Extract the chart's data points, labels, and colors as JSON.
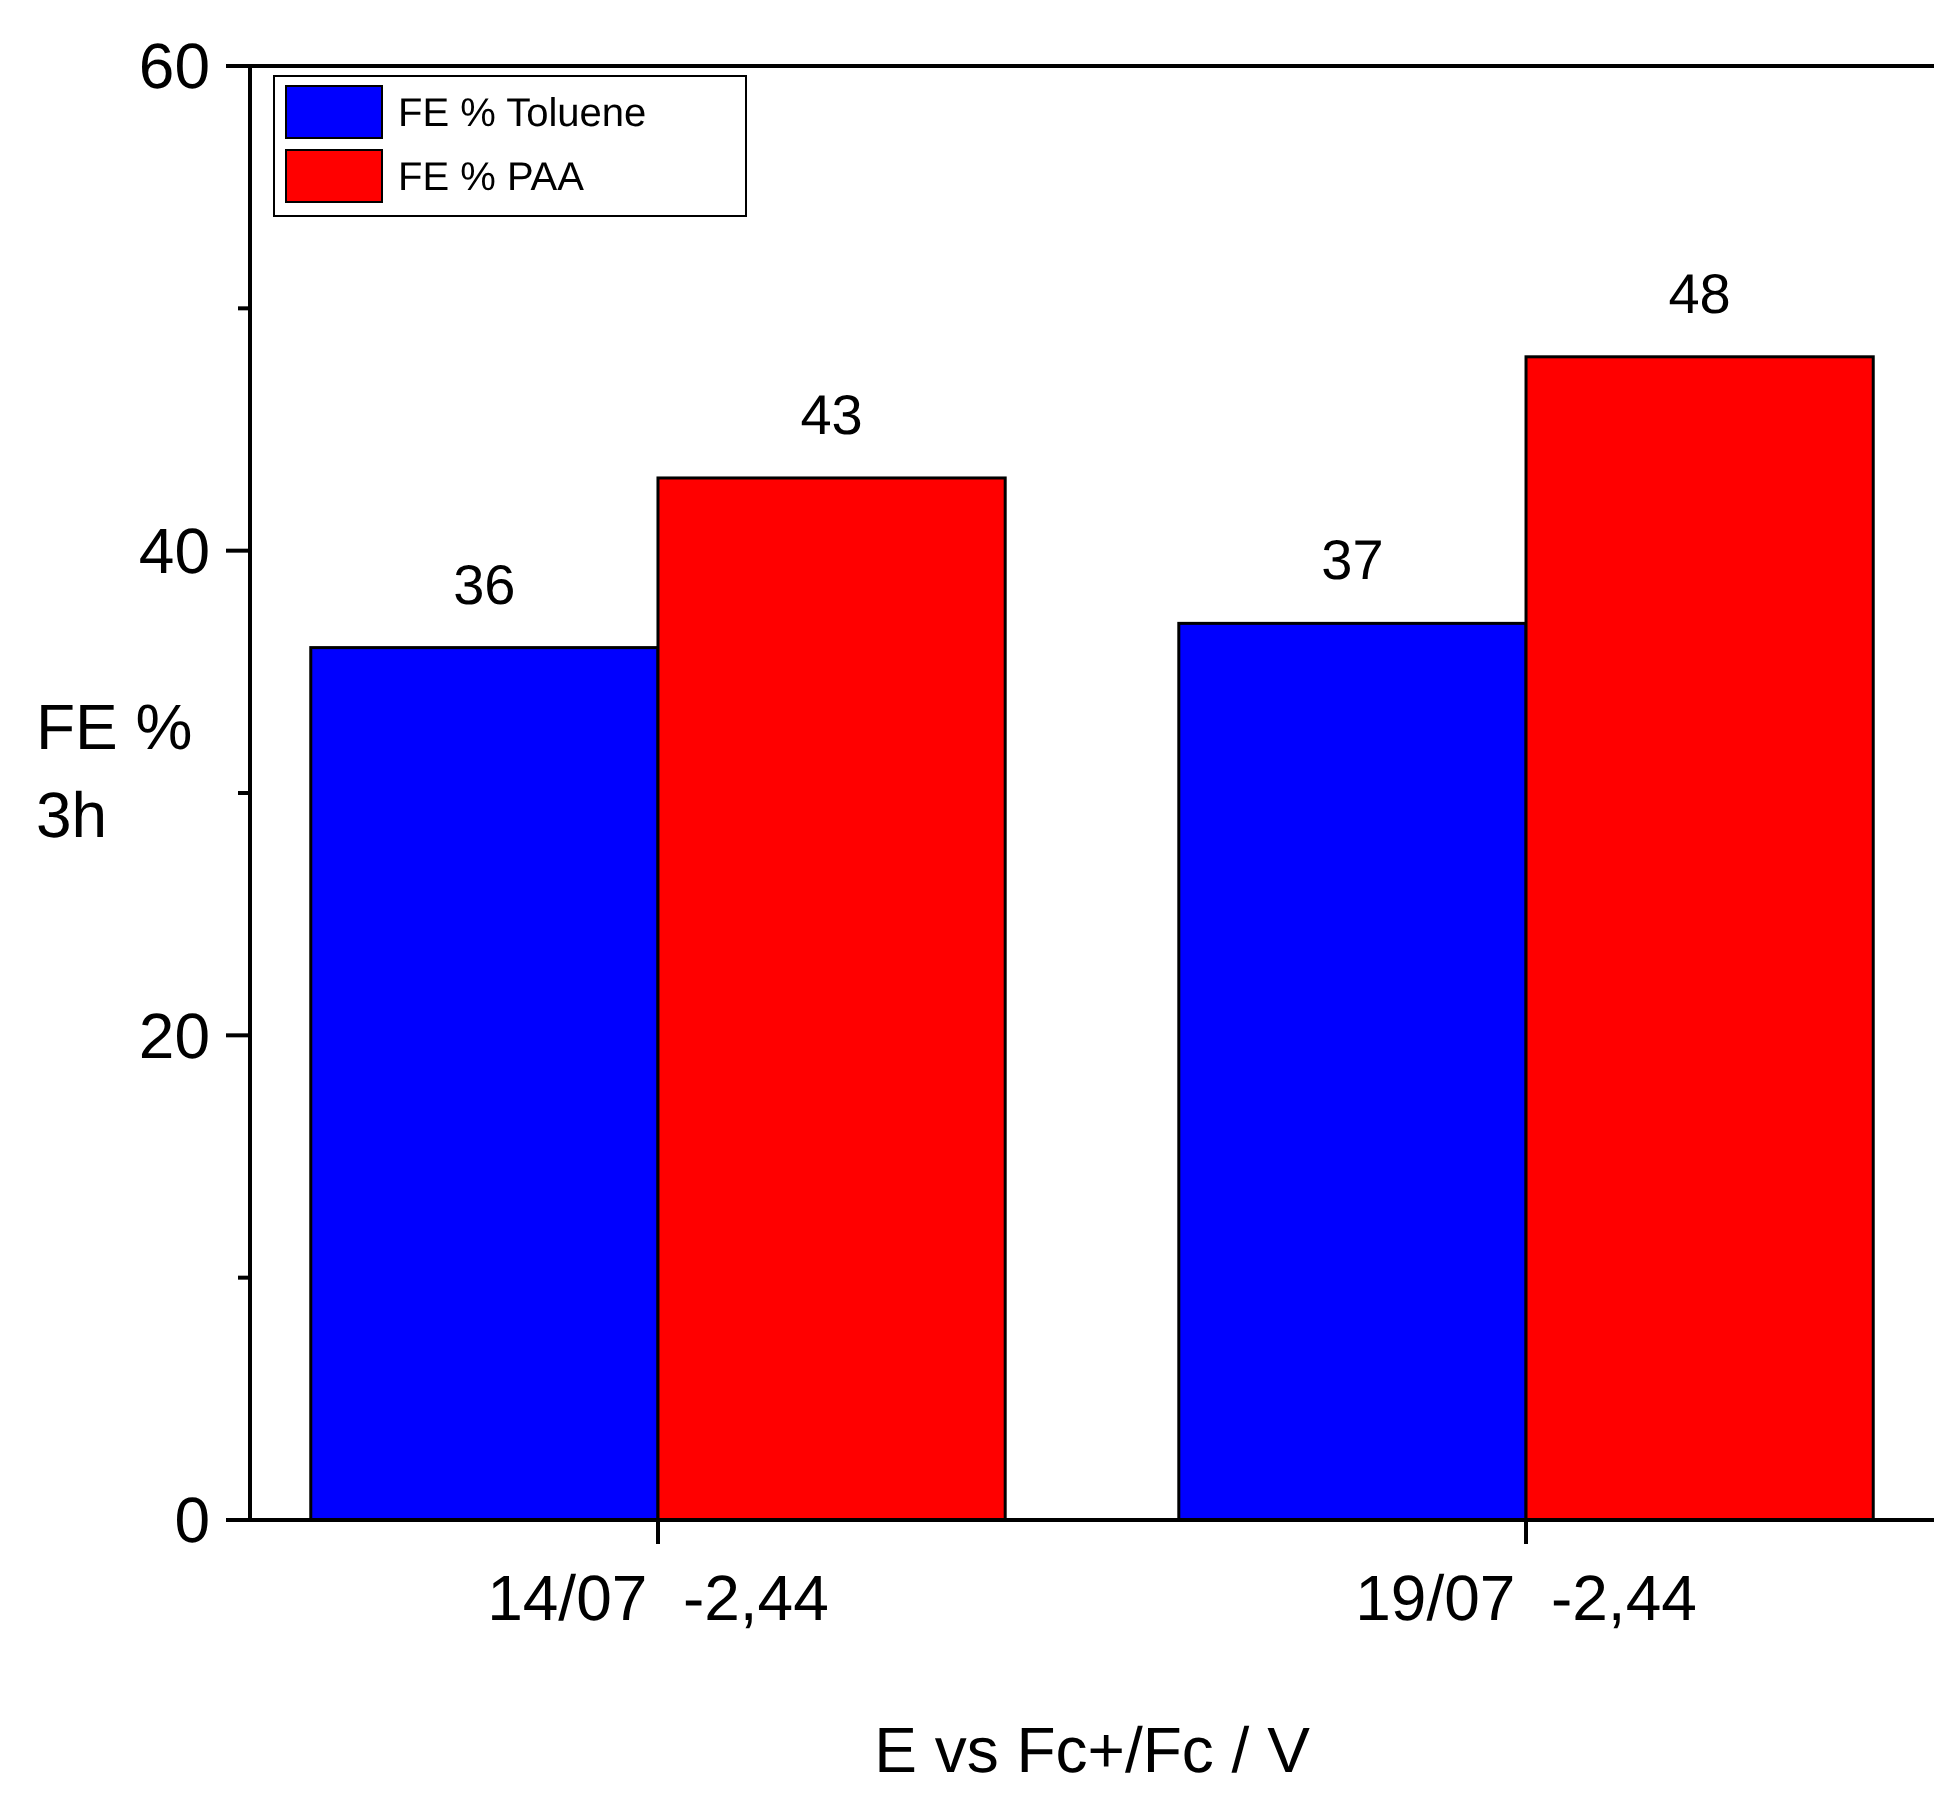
{
  "chart_data": {
    "type": "bar",
    "xlabel": "E vs Fc+/Fc / V",
    "ylabel": "FE %\n3h",
    "categories": [
      "14/07  -2,44",
      "19/07  -2,44"
    ],
    "series": [
      {
        "name": "FE % Toluene",
        "color": "#0000ff",
        "values": [
          36,
          37
        ]
      },
      {
        "name": "FE % PAA",
        "color": "#ff0000",
        "values": [
          43,
          48
        ]
      }
    ],
    "ylim": [
      0,
      60
    ],
    "yticks": [
      0,
      {
        "value": 10,
        "label": null
      },
      20,
      {
        "value": 30,
        "label": null
      },
      40,
      {
        "value": 50,
        "label": null
      },
      60
    ],
    "data_labels": true,
    "grid": false,
    "legend": "top left"
  }
}
